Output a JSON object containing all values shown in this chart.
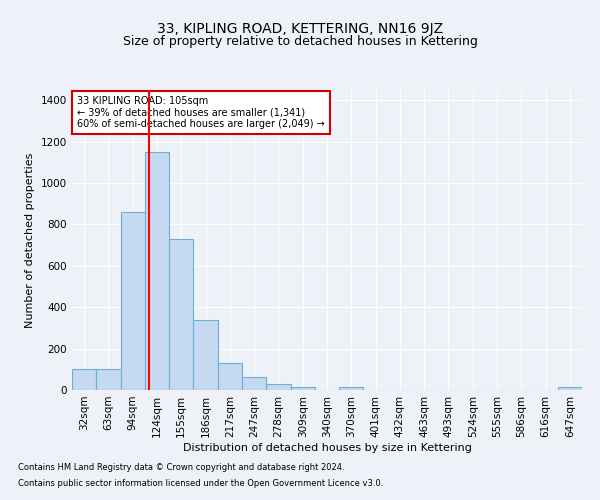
{
  "title": "33, KIPLING ROAD, KETTERING, NN16 9JZ",
  "subtitle": "Size of property relative to detached houses in Kettering",
  "xlabel": "Distribution of detached houses by size in Kettering",
  "ylabel": "Number of detached properties",
  "footnote1": "Contains HM Land Registry data © Crown copyright and database right 2024.",
  "footnote2": "Contains public sector information licensed under the Open Government Licence v3.0.",
  "bar_labels": [
    "32sqm",
    "63sqm",
    "94sqm",
    "124sqm",
    "155sqm",
    "186sqm",
    "217sqm",
    "247sqm",
    "278sqm",
    "309sqm",
    "340sqm",
    "370sqm",
    "401sqm",
    "432sqm",
    "463sqm",
    "493sqm",
    "524sqm",
    "555sqm",
    "586sqm",
    "616sqm",
    "647sqm"
  ],
  "bar_values": [
    100,
    100,
    860,
    1150,
    730,
    340,
    130,
    65,
    30,
    15,
    0,
    15,
    0,
    0,
    0,
    0,
    0,
    0,
    0,
    0,
    15
  ],
  "bar_color": "#c5d9f0",
  "bar_edgecolor": "#6baed6",
  "bar_linewidth": 0.8,
  "red_line_x": 2.67,
  "annotation_line1": "33 KIPLING ROAD: 105sqm",
  "annotation_line2": "← 39% of detached houses are smaller (1,341)",
  "annotation_line3": "60% of semi-detached houses are larger (2,049) →",
  "annotation_box_color": "#cc0000",
  "ylim": [
    0,
    1450
  ],
  "yticks": [
    0,
    200,
    400,
    600,
    800,
    1000,
    1200,
    1400
  ],
  "bg_color": "#eef2f8",
  "plot_bg": "#eef2f8",
  "grid_color": "#ffffff",
  "title_fontsize": 10,
  "subtitle_fontsize": 9,
  "axis_label_fontsize": 8,
  "tick_fontsize": 7.5,
  "footnote_fontsize": 6
}
